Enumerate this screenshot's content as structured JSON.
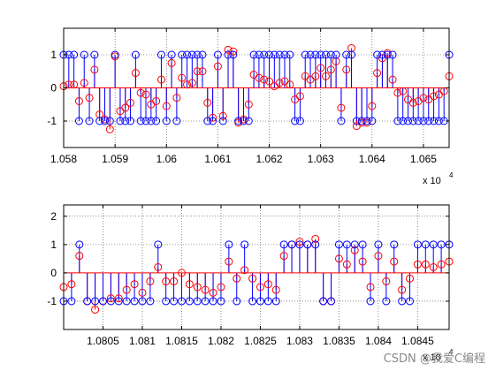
{
  "watermark": "CSDN @我爱C编程",
  "colors": {
    "blue": "#0000ff",
    "red": "#ff0000",
    "axis": "#000000",
    "grid": "#444444"
  },
  "chart_data": [
    {
      "type": "stem",
      "exponent_label": "x 10",
      "exponent_power": "4",
      "xlim": [
        10580,
        10655
      ],
      "ylim": [
        -1.8,
        1.8
      ],
      "xticks": [
        10580,
        10590,
        10600,
        10610,
        10620,
        10630,
        10640,
        10650
      ],
      "xtick_labels": [
        "1.058",
        "1.059",
        "1.06",
        "1.061",
        "1.062",
        "1.063",
        "1.064",
        "1.065"
      ],
      "yticks": [
        1,
        0,
        -1
      ],
      "ytick_labels": [
        "1",
        "0",
        "-1"
      ],
      "grid": "dotted",
      "series": [
        {
          "color": "blue",
          "x": [
            10580,
            10581,
            10582,
            10583,
            10584,
            10585,
            10586,
            10587,
            10588,
            10589,
            10590,
            10591,
            10592,
            10593,
            10594,
            10595,
            10596,
            10597,
            10598,
            10599,
            10600,
            10601,
            10602,
            10603,
            10604,
            10605,
            10606,
            10607,
            10608,
            10609,
            10610,
            10611,
            10612,
            10613,
            10614,
            10615,
            10616,
            10617,
            10618,
            10619,
            10620,
            10621,
            10622,
            10623,
            10624,
            10625,
            10626,
            10627,
            10628,
            10629,
            10630,
            10631,
            10632,
            10633,
            10634,
            10635,
            10636,
            10637,
            10638,
            10639,
            10640,
            10641,
            10642,
            10643,
            10644,
            10645,
            10646,
            10647,
            10648,
            10649,
            10650,
            10651,
            10652,
            10653,
            10654,
            10655
          ],
          "y": [
            1,
            1,
            1,
            -1,
            1,
            -1,
            1,
            -1,
            -1,
            -1,
            1,
            -1,
            -1,
            -1,
            1,
            -1,
            -1,
            -1,
            -1,
            1,
            -1,
            1,
            -1,
            1,
            1,
            1,
            1,
            1,
            -1,
            -1,
            1,
            -1,
            1,
            1,
            -1,
            -1,
            -1,
            1,
            1,
            1,
            1,
            1,
            1,
            1,
            1,
            -1,
            -1,
            1,
            1,
            1,
            1,
            1,
            1,
            1,
            -1,
            1,
            1,
            -1,
            -1,
            -1,
            -1,
            1,
            1,
            1,
            1,
            -1,
            -1,
            -1,
            -1,
            -1,
            -1,
            -1,
            -1,
            -1,
            -1,
            1
          ]
        },
        {
          "color": "red",
          "x": [
            10580,
            10581,
            10582,
            10583,
            10584,
            10585,
            10586,
            10587,
            10588,
            10589,
            10590,
            10591,
            10592,
            10593,
            10594,
            10595,
            10596,
            10597,
            10598,
            10599,
            10600,
            10601,
            10602,
            10603,
            10604,
            10605,
            10606,
            10607,
            10608,
            10609,
            10610,
            10611,
            10612,
            10613,
            10614,
            10615,
            10616,
            10617,
            10618,
            10619,
            10620,
            10621,
            10622,
            10623,
            10624,
            10625,
            10626,
            10627,
            10628,
            10629,
            10630,
            10631,
            10632,
            10633,
            10634,
            10635,
            10636,
            10637,
            10638,
            10639,
            10640,
            10641,
            10642,
            10643,
            10644,
            10645,
            10646,
            10647,
            10648,
            10649,
            10650,
            10651,
            10652,
            10653,
            10654,
            10655
          ],
          "y": [
            0.05,
            0.1,
            0.1,
            -0.4,
            0.15,
            -0.3,
            0.55,
            -0.8,
            -0.95,
            -1.25,
            0.95,
            -0.7,
            -0.6,
            -0.45,
            0.45,
            -0.15,
            -0.2,
            -0.5,
            -0.4,
            0.25,
            -0.55,
            0.75,
            -0.3,
            0.3,
            0.1,
            0.15,
            0.5,
            0.5,
            -0.45,
            -0.9,
            0.65,
            -0.85,
            1.15,
            1.1,
            -1.05,
            -0.95,
            -0.5,
            0.4,
            0.3,
            0.25,
            0.2,
            0.05,
            0.15,
            0.2,
            0.1,
            -0.35,
            -0.25,
            0.35,
            0.25,
            0.35,
            0.6,
            0.35,
            0.55,
            0.8,
            -0.6,
            0.55,
            1.2,
            -1.15,
            -1.05,
            -1.05,
            -0.55,
            0.45,
            0.9,
            1.05,
            0.25,
            -0.15,
            -0.1,
            -0.35,
            -0.45,
            -0.4,
            -0.3,
            -0.35,
            -0.25,
            -0.2,
            -0.1,
            0.35
          ]
        }
      ]
    },
    {
      "type": "stem",
      "exponent_label": "x 10",
      "exponent_power": "4",
      "xlim": [
        10800,
        10849
      ],
      "ylim": [
        -2,
        2.4
      ],
      "xticks": [
        10805,
        10810,
        10815,
        10820,
        10825,
        10830,
        10835,
        10840,
        10845
      ],
      "xtick_labels": [
        "1.0805",
        "1.081",
        "1.0815",
        "1.082",
        "1.0825",
        "1.083",
        "1.0835",
        "1.084",
        "1.0845"
      ],
      "yticks": [
        2,
        1,
        0,
        -1
      ],
      "ytick_labels": [
        "2",
        "1",
        "0",
        "-1"
      ],
      "grid": "dotted",
      "series": [
        {
          "color": "blue",
          "x": [
            10800,
            10801,
            10802,
            10803,
            10804,
            10805,
            10806,
            10807,
            10808,
            10809,
            10810,
            10811,
            10812,
            10813,
            10814,
            10815,
            10816,
            10817,
            10818,
            10819,
            10820,
            10821,
            10822,
            10823,
            10824,
            10825,
            10826,
            10827,
            10828,
            10829,
            10830,
            10831,
            10832,
            10833,
            10834,
            10835,
            10836,
            10837,
            10838,
            10839,
            10840,
            10841,
            10842,
            10843,
            10844,
            10845,
            10846,
            10847,
            10848,
            10849
          ],
          "y": [
            -1,
            -1,
            1,
            -1,
            -1,
            -1,
            -1,
            -1,
            -1,
            -1,
            -1,
            -1,
            1,
            -1,
            -1,
            -1,
            -1,
            -1,
            -1,
            -1,
            -1,
            1,
            -1,
            1,
            -1,
            -1,
            -1,
            -1,
            1,
            1,
            1,
            1,
            1,
            -1,
            -1,
            1,
            1,
            1,
            1,
            -1,
            1,
            -1,
            1,
            -1,
            -1,
            1,
            1,
            1,
            1,
            1
          ]
        },
        {
          "color": "red",
          "x": [
            10800,
            10801,
            10802,
            10803,
            10804,
            10805,
            10806,
            10807,
            10808,
            10809,
            10810,
            10811,
            10812,
            10813,
            10814,
            10815,
            10816,
            10817,
            10818,
            10819,
            10820,
            10821,
            10822,
            10823,
            10824,
            10825,
            10826,
            10827,
            10828,
            10829,
            10830,
            10831,
            10832,
            10833,
            10834,
            10835,
            10836,
            10837,
            10838,
            10839,
            10840,
            10841,
            10842,
            10843,
            10844,
            10845,
            10846,
            10847,
            10848,
            10849
          ],
          "y": [
            -0.5,
            -0.4,
            0.6,
            -1,
            -1.3,
            -1,
            -0.9,
            -0.9,
            -0.6,
            -0.4,
            -0.7,
            -0.3,
            0.2,
            -0.3,
            -0.3,
            0,
            -0.4,
            -0.5,
            -0.6,
            -0.7,
            -0.5,
            0.4,
            -0.2,
            0.1,
            -0.2,
            -0.5,
            -0.4,
            -0.6,
            0.6,
            1,
            1.1,
            1,
            1.2,
            -1,
            -1,
            0.5,
            0.3,
            0.8,
            0.4,
            -0.5,
            0.6,
            -0.3,
            0.4,
            -0.6,
            -0.2,
            0.3,
            0.3,
            0.2,
            0.3,
            0.4
          ]
        }
      ]
    }
  ]
}
